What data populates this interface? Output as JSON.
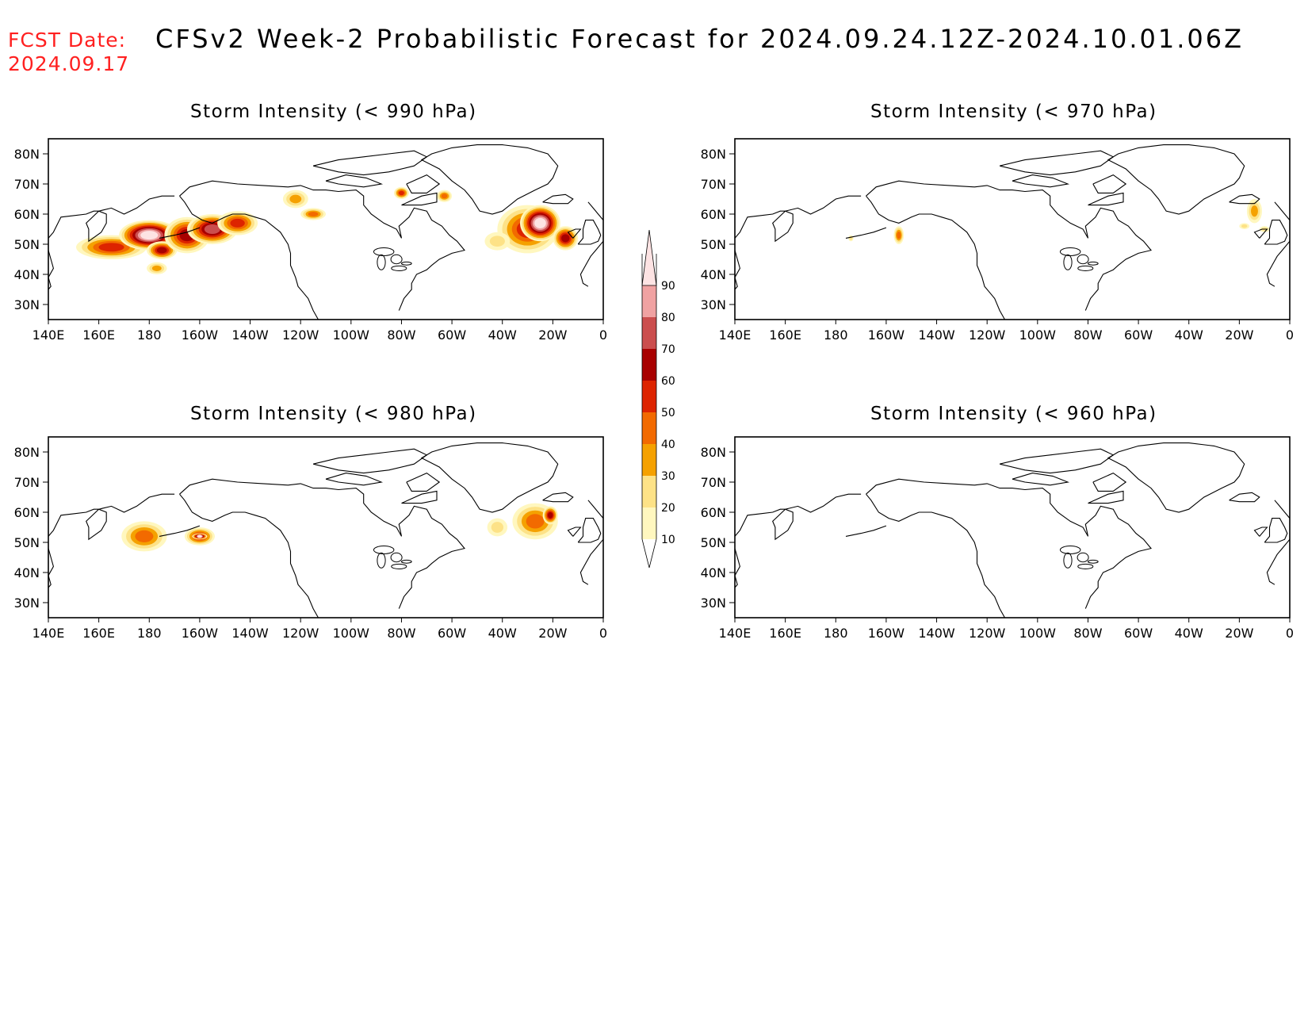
{
  "header": {
    "fcst_label": "FCST Date:",
    "fcst_date": "2024.09.17",
    "title": "CFSv2 Week-2 Probabilistic Forecast for 2024.09.24.12Z-2024.10.01.06Z",
    "fcst_color": "#ff2020"
  },
  "axes": {
    "lon_ticks": [
      "140E",
      "160E",
      "180",
      "160W",
      "140W",
      "120W",
      "100W",
      "80W",
      "60W",
      "40W",
      "20W",
      "0"
    ],
    "lat_ticks": [
      "80N",
      "70N",
      "60N",
      "50N",
      "40N",
      "30N"
    ]
  },
  "colorbar": {
    "levels": [
      "10",
      "20",
      "30",
      "40",
      "50",
      "60",
      "70",
      "80",
      "90"
    ],
    "colors": [
      "#fff7bf",
      "#fde287",
      "#f5a100",
      "#f26a00",
      "#dd2400",
      "#a80000",
      "#cb4e4e",
      "#f0a2a2",
      "#fde3e3"
    ]
  },
  "panels": [
    {
      "id": "p990",
      "title": "Storm Intensity (< 990 hPa)",
      "blobs": [
        {
          "lon": 165,
          "lat": 49,
          "rx": 14,
          "ry": 4,
          "p": 50
        },
        {
          "lon": 180,
          "lat": 53,
          "rx": 12,
          "ry": 5,
          "p": 90
        },
        {
          "lon": 185,
          "lat": 48,
          "rx": 6,
          "ry": 3,
          "p": 60
        },
        {
          "lon": 195,
          "lat": 53,
          "rx": 9,
          "ry": 6,
          "p": 60
        },
        {
          "lon": 205,
          "lat": 55,
          "rx": 10,
          "ry": 5,
          "p": 70
        },
        {
          "lon": 215,
          "lat": 57,
          "rx": 8,
          "ry": 4,
          "p": 50
        },
        {
          "lon": 183,
          "lat": 42,
          "rx": 4,
          "ry": 2,
          "p": 30
        },
        {
          "lon": 238,
          "lat": 65,
          "rx": 5,
          "ry": 3,
          "p": 30
        },
        {
          "lon": 245,
          "lat": 60,
          "rx": 5,
          "ry": 2,
          "p": 40
        },
        {
          "lon": 297,
          "lat": 66,
          "rx": 3,
          "ry": 2,
          "p": 40
        },
        {
          "lon": 280,
          "lat": 67,
          "rx": 3,
          "ry": 2,
          "p": 50
        },
        {
          "lon": 330,
          "lat": 55,
          "rx": 12,
          "ry": 8,
          "p": 50
        },
        {
          "lon": 335,
          "lat": 57,
          "rx": 8,
          "ry": 6,
          "p": 90
        },
        {
          "lon": 345,
          "lat": 52,
          "rx": 5,
          "ry": 4,
          "p": 60
        },
        {
          "lon": 318,
          "lat": 51,
          "rx": 5,
          "ry": 3,
          "p": 20
        }
      ]
    },
    {
      "id": "p970",
      "title": "Storm Intensity (< 970 hPa)",
      "blobs": [
        {
          "lon": 205,
          "lat": 53,
          "rx": 2,
          "ry": 3,
          "p": 40
        },
        {
          "lon": 186,
          "lat": 52,
          "rx": 1,
          "ry": 1,
          "p": 20
        },
        {
          "lon": 346,
          "lat": 61,
          "rx": 3,
          "ry": 4,
          "p": 30
        },
        {
          "lon": 342,
          "lat": 56,
          "rx": 2,
          "ry": 1,
          "p": 20
        },
        {
          "lon": 350,
          "lat": 55,
          "rx": 2,
          "ry": 1,
          "p": 20
        }
      ]
    },
    {
      "id": "p980",
      "title": "Storm Intensity (< 980 hPa)",
      "blobs": [
        {
          "lon": 178,
          "lat": 52,
          "rx": 9,
          "ry": 5,
          "p": 40
        },
        {
          "lon": 200,
          "lat": 52,
          "rx": 6,
          "ry": 3,
          "p": 50
        },
        {
          "lon": 200,
          "lat": 52,
          "rx": 3,
          "ry": 1,
          "p": 90
        },
        {
          "lon": 333,
          "lat": 57,
          "rx": 9,
          "ry": 6,
          "p": 40
        },
        {
          "lon": 339,
          "lat": 59,
          "rx": 3,
          "ry": 3,
          "p": 60
        },
        {
          "lon": 318,
          "lat": 55,
          "rx": 4,
          "ry": 3,
          "p": 20
        }
      ]
    },
    {
      "id": "p960",
      "title": "Storm Intensity (< 960 hPa)",
      "blobs": []
    }
  ]
}
